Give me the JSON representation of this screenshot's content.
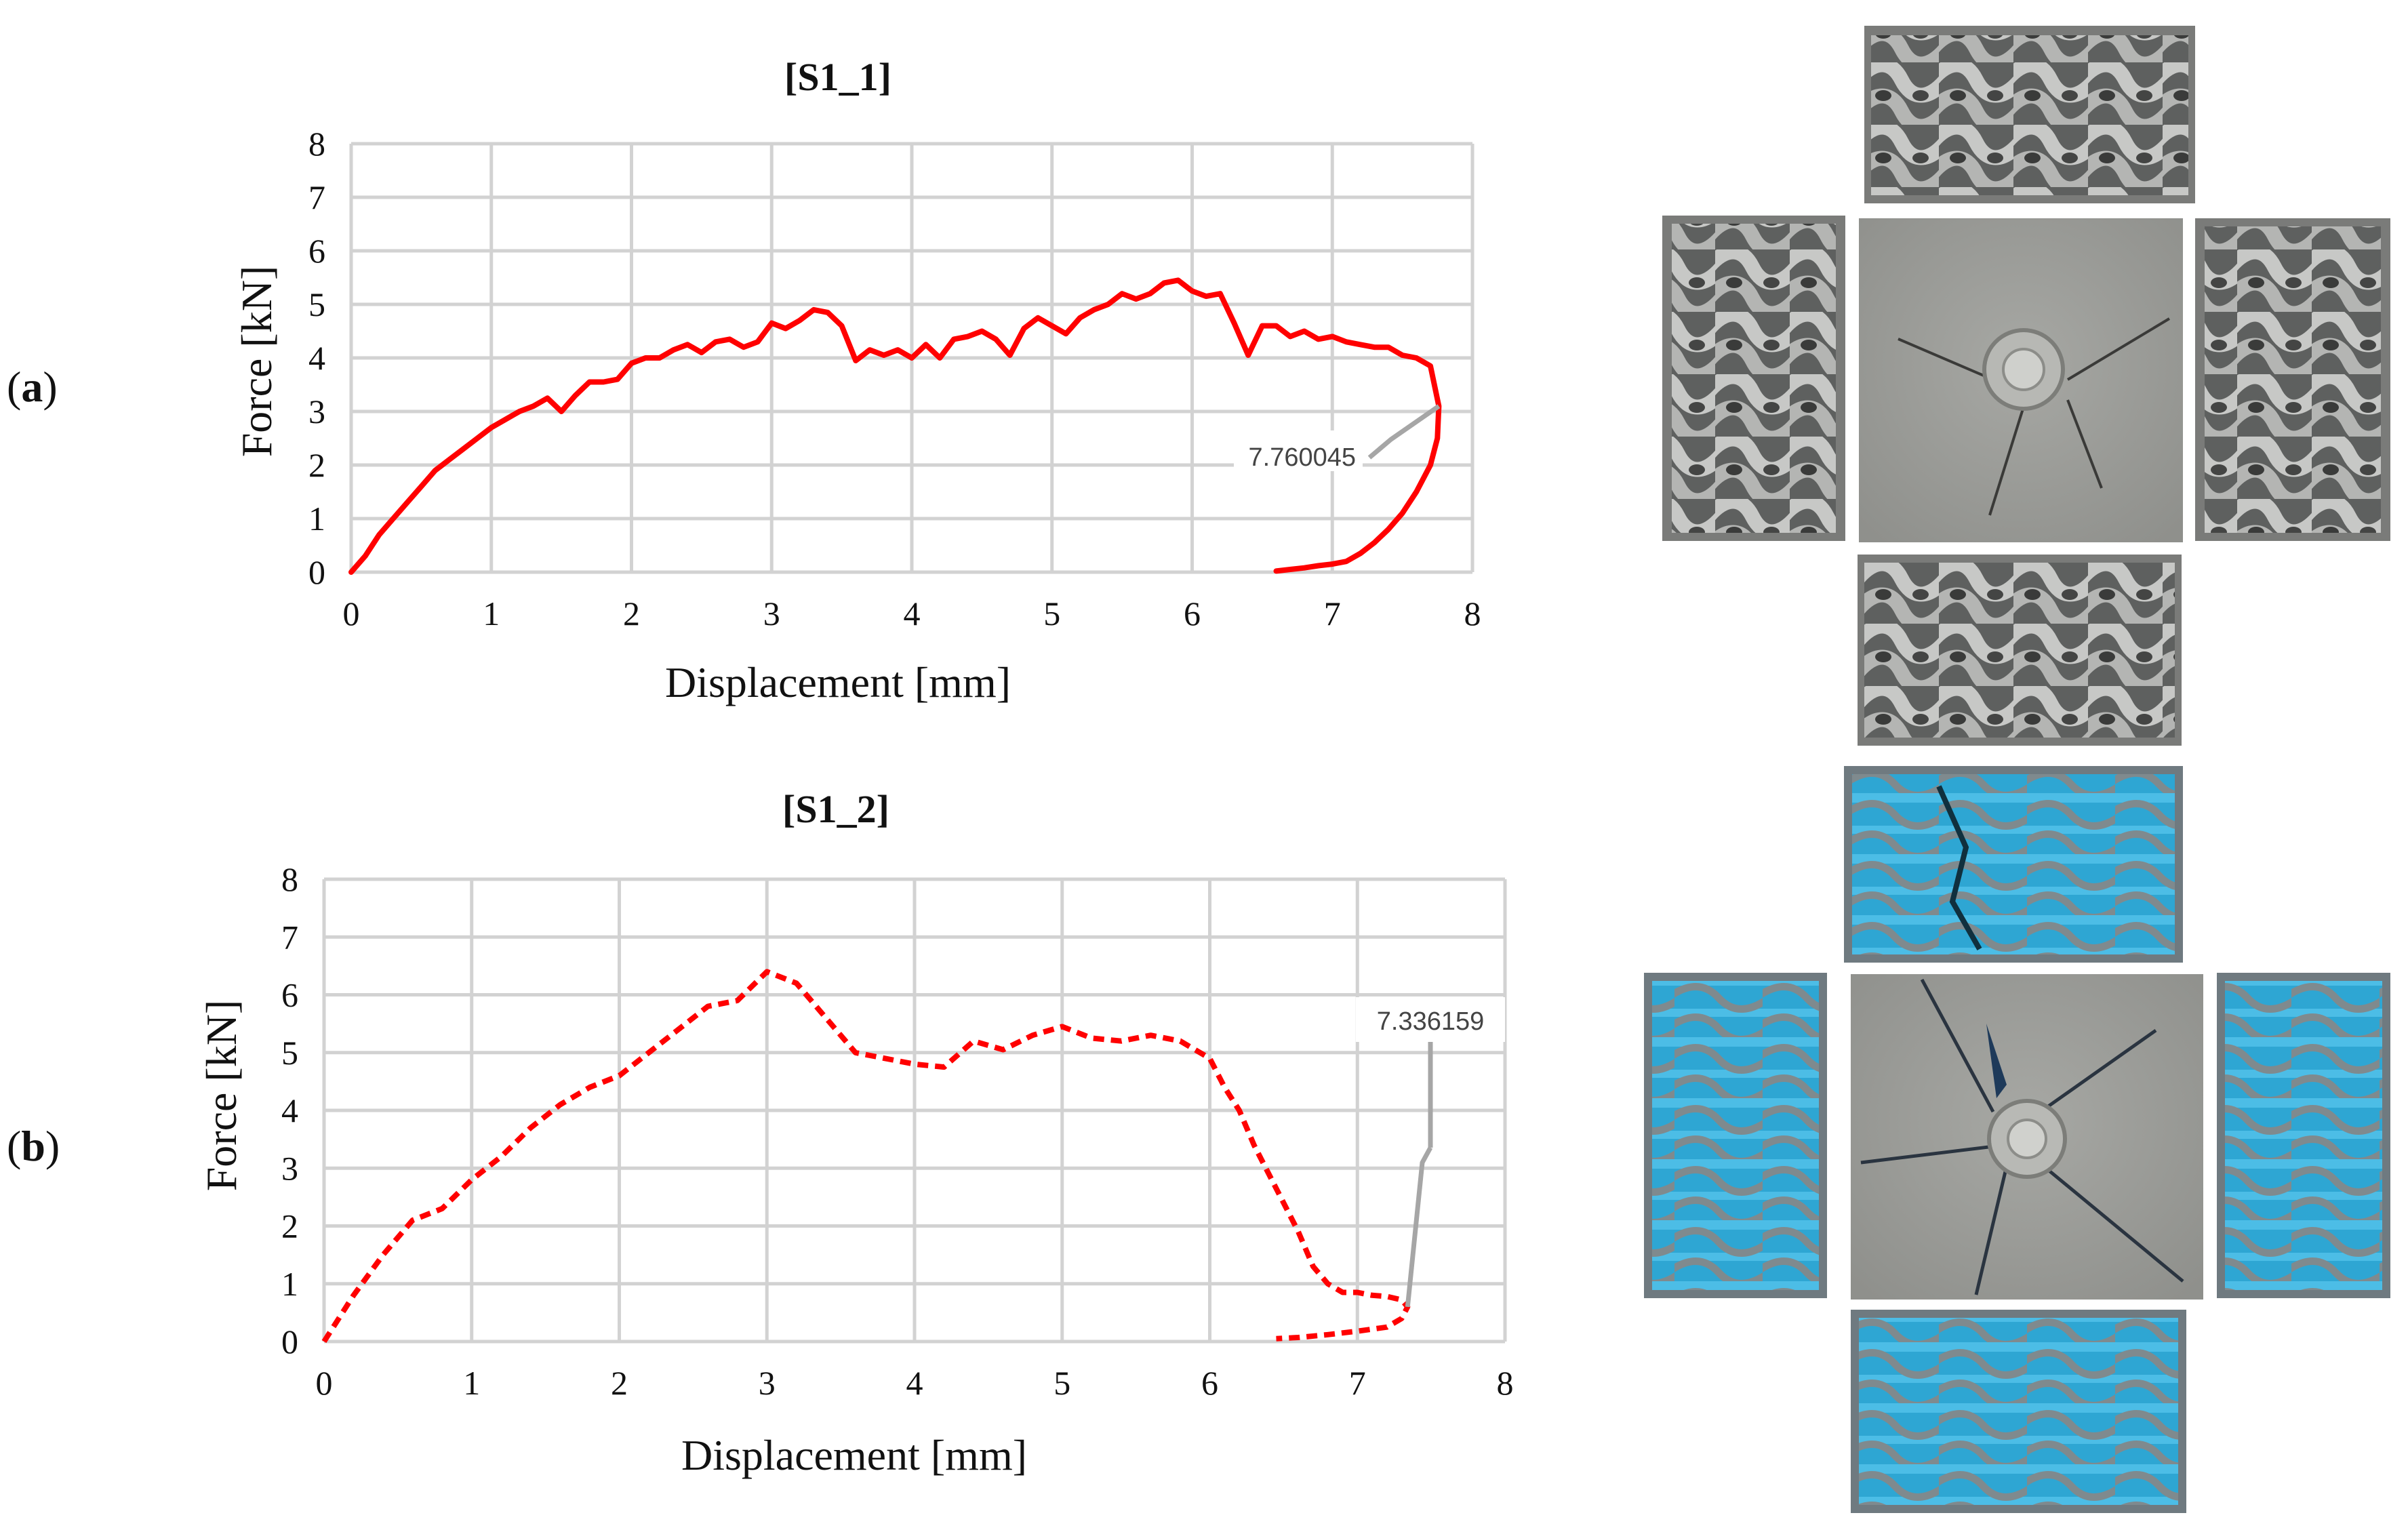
{
  "panels": [
    {
      "label_open": "(",
      "label_letter": "a",
      "label_close": ")"
    },
    {
      "label_open": "(",
      "label_letter": "b",
      "label_close": ")"
    }
  ],
  "colors": {
    "series": "#ff0000",
    "grid": "#d2d2d2",
    "leader": "#a6a6a6",
    "gray_specimen": "#9a9a98",
    "blue_specimen": "#2aa9d8",
    "plate": "#9c9c98"
  },
  "photos": [
    {
      "name": "specimen-s1-1-photo",
      "material": "gray lattice, gyroid-like pattern"
    },
    {
      "name": "specimen-s1-2-photo",
      "material": "blue lattice, wavy pattern"
    }
  ],
  "chart_data": [
    {
      "type": "line",
      "title": "[S1_1]",
      "xlabel": "Displacement [mm]",
      "ylabel": "Force [kN]",
      "xlim": [
        0,
        8
      ],
      "ylim": [
        0,
        8
      ],
      "xticks": [
        "0",
        "1",
        "2",
        "3",
        "4",
        "5",
        "6",
        "7",
        "8"
      ],
      "yticks": [
        "0",
        "1",
        "2",
        "3",
        "4",
        "5",
        "6",
        "7",
        "8"
      ],
      "grid": true,
      "line_style": "solid",
      "annotation": {
        "text": "7.760045",
        "x": 7.76,
        "y": 3.1
      },
      "series": [
        {
          "x": [
            0.0,
            0.1,
            0.2,
            0.3,
            0.4,
            0.5,
            0.6,
            0.7,
            0.8,
            0.9,
            1.0,
            1.1,
            1.2,
            1.3,
            1.4,
            1.5,
            1.6,
            1.7,
            1.8,
            1.9,
            2.0,
            2.1,
            2.2,
            2.3,
            2.4,
            2.5,
            2.6,
            2.7,
            2.8,
            2.9,
            3.0,
            3.1,
            3.2,
            3.3,
            3.4,
            3.5,
            3.6,
            3.7,
            3.8,
            3.9,
            4.0,
            4.1,
            4.2,
            4.3,
            4.4,
            4.5,
            4.6,
            4.7,
            4.8,
            4.9,
            5.0,
            5.1,
            5.2,
            5.3,
            5.4,
            5.5,
            5.6,
            5.7,
            5.8,
            5.9,
            6.0,
            6.1,
            6.2,
            6.3,
            6.4,
            6.5,
            6.6,
            6.7,
            6.8,
            6.9,
            7.0,
            7.1,
            7.2,
            7.3,
            7.4,
            7.5,
            7.6,
            7.7,
            7.76,
            7.75,
            7.7,
            7.6,
            7.5,
            7.4,
            7.3,
            7.2,
            7.1,
            7.0,
            6.9,
            6.8,
            6.7,
            6.6
          ],
          "y": [
            0.0,
            0.3,
            0.7,
            1.0,
            1.3,
            1.6,
            1.9,
            2.1,
            2.3,
            2.5,
            2.7,
            2.85,
            3.0,
            3.1,
            3.25,
            3.0,
            3.3,
            3.55,
            3.55,
            3.6,
            3.9,
            4.0,
            4.0,
            4.15,
            4.25,
            4.1,
            4.3,
            4.35,
            4.2,
            4.3,
            4.65,
            4.55,
            4.7,
            4.9,
            4.85,
            4.6,
            3.95,
            4.15,
            4.05,
            4.15,
            4.0,
            4.25,
            4.0,
            4.35,
            4.4,
            4.5,
            4.35,
            4.05,
            4.55,
            4.75,
            4.6,
            4.45,
            4.75,
            4.9,
            5.0,
            5.2,
            5.1,
            5.2,
            5.4,
            5.45,
            5.25,
            5.15,
            5.2,
            4.65,
            4.05,
            4.6,
            4.6,
            4.4,
            4.5,
            4.35,
            4.4,
            4.3,
            4.25,
            4.2,
            4.2,
            4.05,
            4.0,
            3.85,
            3.1,
            2.5,
            2.0,
            1.5,
            1.1,
            0.8,
            0.55,
            0.35,
            0.2,
            0.15,
            0.12,
            0.08,
            0.05,
            0.02
          ]
        }
      ]
    },
    {
      "type": "line",
      "title": "[S1_2]",
      "xlabel": "Displacement [mm]",
      "ylabel": "Force [kN]",
      "xlim": [
        0,
        8
      ],
      "ylim": [
        0,
        8
      ],
      "xticks": [
        "0",
        "1",
        "2",
        "3",
        "4",
        "5",
        "6",
        "7",
        "8"
      ],
      "yticks": [
        "0",
        "1",
        "2",
        "3",
        "4",
        "5",
        "6",
        "7",
        "8"
      ],
      "grid": true,
      "line_style": "dashed",
      "annotation": {
        "text": "7.336159",
        "x": 7.34,
        "y": 0.6
      },
      "series": [
        {
          "x": [
            0.0,
            0.2,
            0.4,
            0.6,
            0.8,
            1.0,
            1.2,
            1.4,
            1.6,
            1.8,
            2.0,
            2.2,
            2.4,
            2.6,
            2.8,
            3.0,
            3.2,
            3.4,
            3.6,
            3.8,
            4.0,
            4.2,
            4.4,
            4.6,
            4.8,
            5.0,
            5.2,
            5.4,
            5.6,
            5.8,
            6.0,
            6.1,
            6.2,
            6.3,
            6.4,
            6.5,
            6.6,
            6.7,
            6.8,
            6.9,
            7.0,
            7.1,
            7.2,
            7.3,
            7.34,
            7.3,
            7.2,
            7.0,
            6.8,
            6.6,
            6.45
          ],
          "y": [
            0.0,
            0.8,
            1.5,
            2.1,
            2.3,
            2.8,
            3.2,
            3.7,
            4.1,
            4.4,
            4.6,
            5.0,
            5.4,
            5.8,
            5.9,
            6.4,
            6.2,
            5.6,
            5.0,
            4.9,
            4.8,
            4.75,
            5.2,
            5.05,
            5.3,
            5.45,
            5.25,
            5.2,
            5.3,
            5.2,
            4.9,
            4.4,
            4.0,
            3.4,
            2.9,
            2.4,
            1.9,
            1.3,
            1.0,
            0.85,
            0.85,
            0.8,
            0.78,
            0.72,
            0.6,
            0.4,
            0.25,
            0.18,
            0.12,
            0.07,
            0.05
          ]
        }
      ]
    }
  ]
}
